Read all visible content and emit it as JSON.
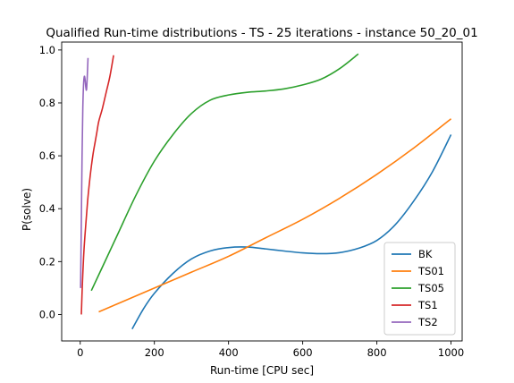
{
  "chart_data": {
    "type": "line",
    "title": "Qualified Run-time distributions - TS - 25 iterations - instance 50_20_01",
    "xlabel": "Run-time [CPU sec]",
    "ylabel": "P(solve)",
    "xlim": [
      -50,
      1030
    ],
    "ylim": [
      -0.1,
      1.03
    ],
    "xticks": [
      0,
      200,
      400,
      600,
      800,
      1000
    ],
    "xtick_labels": [
      "0",
      "200",
      "400",
      "600",
      "800",
      "1000"
    ],
    "yticks": [
      0.0,
      0.2,
      0.4,
      0.6,
      0.8,
      1.0
    ],
    "ytick_labels": [
      "0.0",
      "0.2",
      "0.4",
      "0.6",
      "0.8",
      "1.0"
    ],
    "grid": false,
    "legend": {
      "position": "bottom-right"
    },
    "series": [
      {
        "name": "BK",
        "color": "#1f77b4",
        "x": [
          140,
          170,
          200,
          250,
          300,
          350,
          400,
          450,
          500,
          550,
          600,
          650,
          700,
          750,
          800,
          850,
          900,
          950,
          1000
        ],
        "y": [
          -0.055,
          0.02,
          0.08,
          0.155,
          0.21,
          0.24,
          0.253,
          0.255,
          0.248,
          0.24,
          0.233,
          0.23,
          0.234,
          0.25,
          0.28,
          0.34,
          0.43,
          0.54,
          0.68
        ]
      },
      {
        "name": "TS01",
        "color": "#ff7f0e",
        "x": [
          50,
          100,
          200,
          300,
          400,
          500,
          600,
          700,
          800,
          900,
          1000
        ],
        "y": [
          0.01,
          0.04,
          0.1,
          0.16,
          0.22,
          0.29,
          0.36,
          0.44,
          0.53,
          0.63,
          0.74
        ]
      },
      {
        "name": "TS05",
        "color": "#2ca02c",
        "x": [
          30,
          60,
          100,
          150,
          200,
          250,
          300,
          350,
          400,
          450,
          500,
          550,
          600,
          650,
          700,
          750
        ],
        "y": [
          0.09,
          0.18,
          0.3,
          0.45,
          0.58,
          0.68,
          0.76,
          0.81,
          0.83,
          0.84,
          0.845,
          0.853,
          0.868,
          0.89,
          0.93,
          0.985
        ]
      },
      {
        "name": "TS1",
        "color": "#d62728",
        "x": [
          3,
          6,
          10,
          15,
          20,
          25,
          30,
          35,
          40,
          45,
          50,
          60,
          70,
          80,
          90
        ],
        "y": [
          0.0,
          0.12,
          0.24,
          0.34,
          0.43,
          0.5,
          0.56,
          0.61,
          0.65,
          0.69,
          0.73,
          0.78,
          0.84,
          0.9,
          0.98
        ]
      },
      {
        "name": "TS2",
        "color": "#9467bd",
        "x": [
          1,
          3,
          5,
          7,
          9,
          11,
          13,
          15,
          17,
          19,
          21
        ],
        "y": [
          0.1,
          0.35,
          0.6,
          0.78,
          0.87,
          0.9,
          0.89,
          0.86,
          0.85,
          0.9,
          0.97
        ]
      }
    ]
  }
}
